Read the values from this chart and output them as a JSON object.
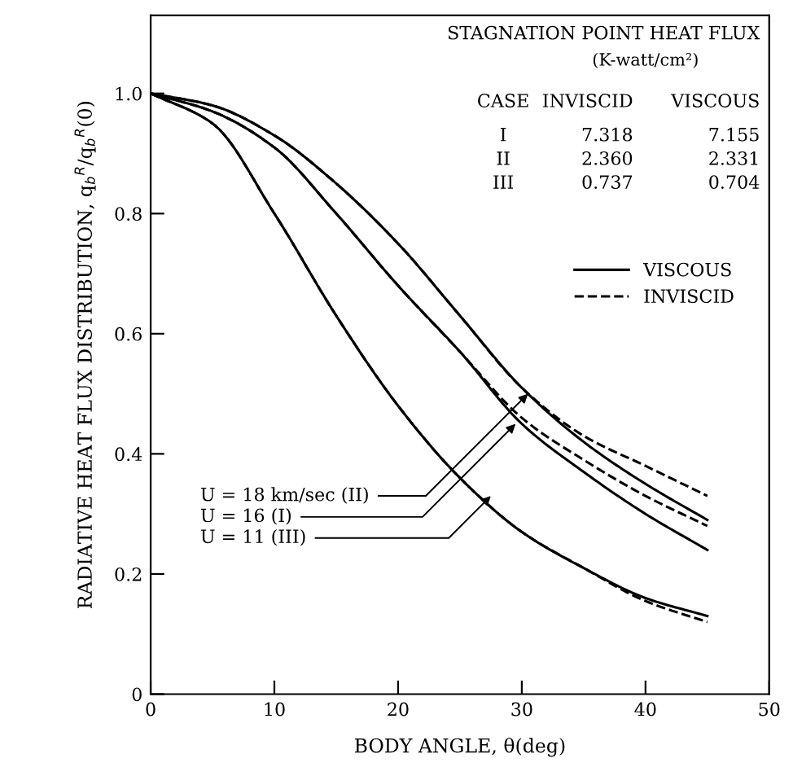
{
  "chart_data": {
    "type": "line",
    "xlabel": "BODY ANGLE, θ(deg)",
    "ylabel": "RADIATIVE HEAT FLUX DISTRIBUTION, q$_{b}$$^{R}$/q$_{b}$$^{R}$(0)",
    "x": [
      0,
      5,
      10,
      15,
      20,
      25,
      30,
      35,
      40,
      45
    ],
    "series": [
      {
        "name": "VISCOUS",
        "color": "#000000",
        "line_style": "solid",
        "values": [
          1.0,
          0.98,
          0.93,
          0.85,
          0.75,
          0.63,
          0.51,
          0.42,
          0.35,
          0.29
        ]
      },
      {
        "name": "INVISCID",
        "color": "#000000",
        "line_style": "dashed",
        "values": [
          1.0,
          0.98,
          0.93,
          0.85,
          0.75,
          0.63,
          0.51,
          0.43,
          0.38,
          0.33
        ]
      },
      {
        "color": "#000000",
        "line_style": "solid",
        "values": [
          1.0,
          0.97,
          0.91,
          0.8,
          0.68,
          0.57,
          0.45,
          0.37,
          0.3,
          0.24
        ]
      },
      {
        "color": "#000000",
        "line_style": "dashed",
        "values": [
          1.0,
          0.97,
          0.91,
          0.8,
          0.68,
          0.57,
          0.46,
          0.39,
          0.33,
          0.28
        ]
      },
      {
        "color": "#000000",
        "line_style": "solid",
        "values": [
          1.0,
          0.95,
          0.8,
          0.63,
          0.48,
          0.36,
          0.27,
          0.21,
          0.16,
          0.13
        ]
      },
      {
        "color": "#000000",
        "line_style": "dashed",
        "values": [
          1.0,
          0.95,
          0.8,
          0.63,
          0.48,
          0.36,
          0.27,
          0.21,
          0.155,
          0.12
        ]
      }
    ],
    "xlim": [
      0,
      50
    ],
    "xticks": [
      0,
      10,
      20,
      30,
      40,
      50
    ],
    "ylim": [
      0,
      1.13
    ],
    "yticks": [
      0,
      {
        "value": 0.2,
        "label": "0.2"
      },
      {
        "value": 0.4,
        "label": "0.4"
      },
      {
        "value": 0.6,
        "label": "0.6"
      },
      {
        "value": 0.8,
        "label": "0.8"
      },
      {
        "value": 1.0,
        "label": "1.0"
      }
    ],
    "grid": false,
    "legend": "right",
    "marker": "none",
    "annotations": [
      "STAGNATION POINT HEAT FLUX",
      "(K-watt/cm²)",
      "CASE",
      "INVISCID",
      "VISCOUS",
      "I",
      "7.318",
      "7.155",
      "II",
      "2.360",
      "2.331",
      "III",
      "0.737",
      "0.704",
      {
        "text": "U = 18 km/sec (II)",
        "x": 30.5,
        "y": 0.5
      },
      {
        "text": "U = 16 (I)",
        "x": 29.5,
        "y": 0.45
      },
      {
        "text": "U = 11 (III)",
        "x": 27.5,
        "y": 0.33
      }
    ]
  }
}
